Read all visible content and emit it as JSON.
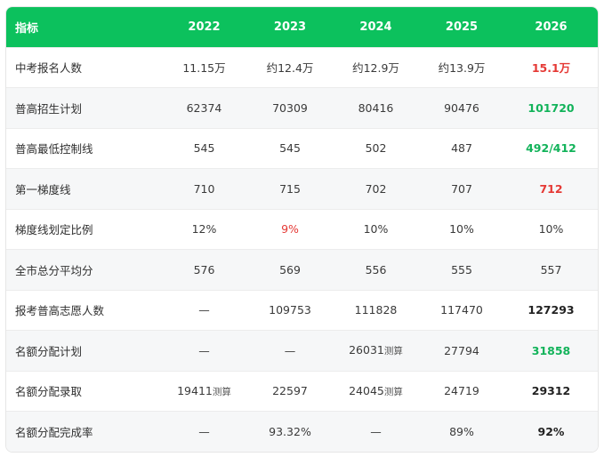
{
  "headers": [
    "指标",
    "2022",
    "2023",
    "2024",
    "2025",
    "2026"
  ],
  "rows": [
    {
      "label": "中考报名人数",
      "cells": [
        "11.15万",
        "约12.4万",
        "约12.9万",
        "约13.9万",
        "15.1万"
      ],
      "last_style": "red"
    },
    {
      "label": "普高招生计划",
      "cells": [
        "62374",
        "70309",
        "80416",
        "90476",
        "101720"
      ],
      "last_style": "green"
    },
    {
      "label": "普高最低控制线",
      "cells": [
        "545",
        "545",
        "502",
        "487",
        "492/412"
      ],
      "last_style": "green"
    },
    {
      "label": "第一梯度线",
      "cells": [
        "710",
        "715",
        "702",
        "707",
        "712"
      ],
      "last_style": "red"
    },
    {
      "label": "梯度线划定比例",
      "cells": [
        "12%",
        "9%",
        "10%",
        "10%",
        "10%"
      ],
      "last_style": "normal",
      "red_cell_index": 1
    },
    {
      "label": "全市总分平均分",
      "cells": [
        "576",
        "569",
        "556",
        "555",
        "557"
      ],
      "last_style": "normal"
    },
    {
      "label": "报考普高志愿人数",
      "cells": [
        "—",
        "109753",
        "111828",
        "117470",
        "127293"
      ],
      "last_style": "bold"
    },
    {
      "label": "名额分配计划",
      "cells": [
        "—",
        "—",
        "26031",
        "27794",
        "31858"
      ],
      "sub": {
        "2": "测算"
      },
      "last_style": "green"
    },
    {
      "label": "名额分配录取",
      "cells": [
        "19411",
        "22597",
        "24045",
        "24719",
        "29312"
      ],
      "sub": {
        "0": "测算",
        "2": "测算"
      },
      "last_style": "bold"
    },
    {
      "label": "名额分配完成率",
      "cells": [
        "—",
        "93.32%",
        "—",
        "89%",
        "92%"
      ],
      "last_style": "bold"
    }
  ],
  "colors": {
    "header_bg": "#0cc15d",
    "highlight_red": "#e53935",
    "highlight_green": "#12b35a"
  }
}
